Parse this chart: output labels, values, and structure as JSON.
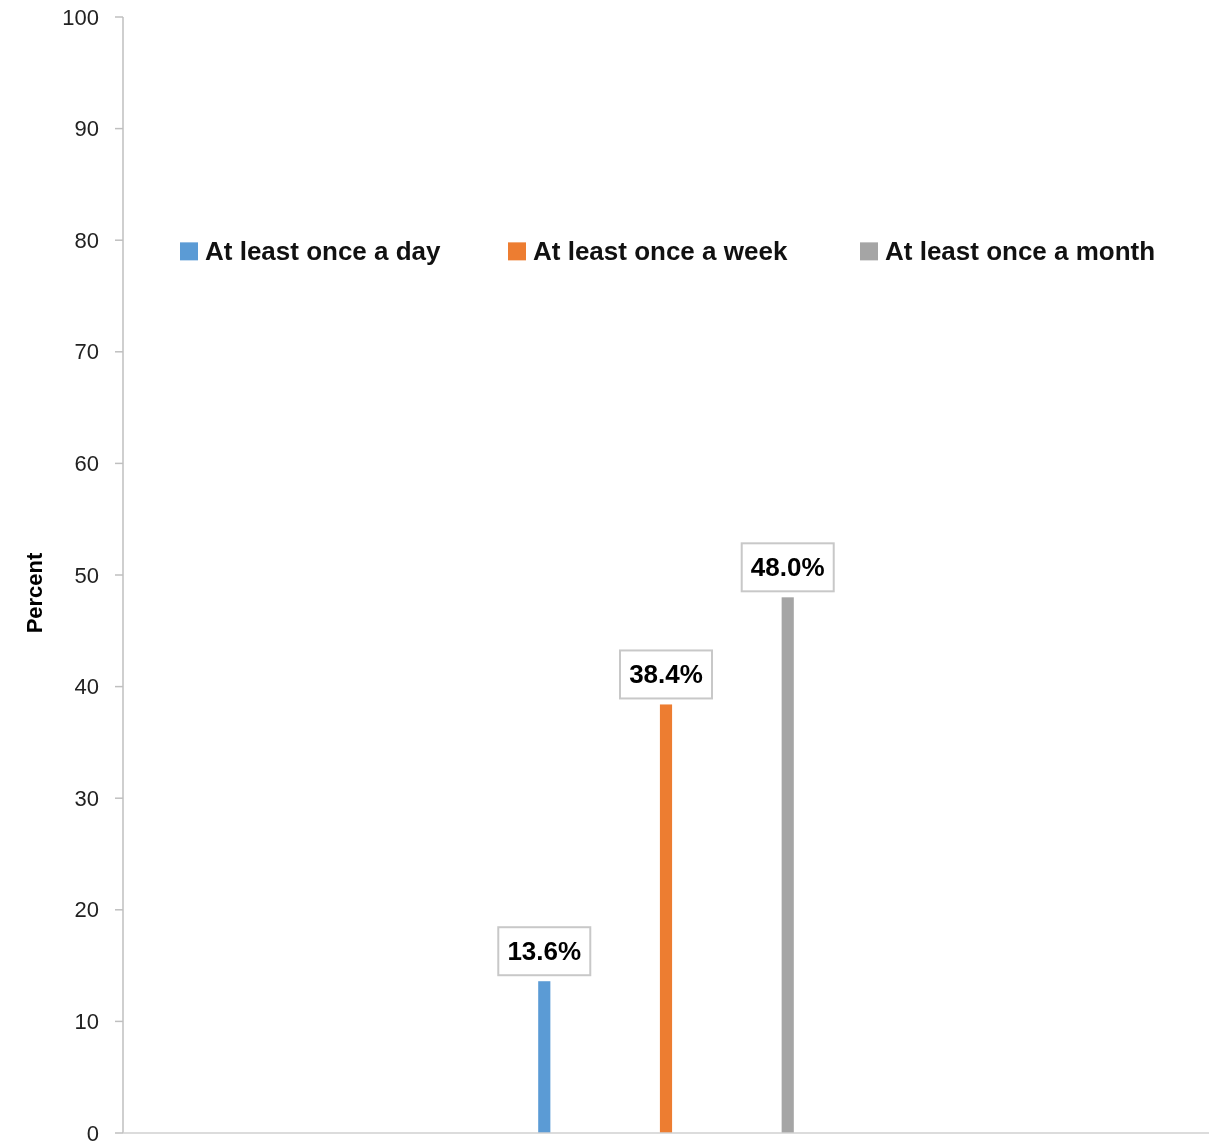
{
  "chart_data": {
    "type": "bar",
    "ylabel": "Percent",
    "categories": [
      null
    ],
    "series": [
      {
        "name": "At least once a day",
        "color": "#5b9bd5",
        "values": [
          13.6
        ],
        "value_labels": [
          "13.6%"
        ]
      },
      {
        "name": "At least once a week",
        "color": "#ed7d31",
        "values": [
          38.4
        ],
        "value_labels": [
          "38.4%"
        ]
      },
      {
        "name": "At least once a month",
        "color": "#a5a5a5",
        "values": [
          48.0
        ],
        "value_labels": [
          "48.0%"
        ]
      }
    ],
    "ylim": [
      0,
      100
    ],
    "yticks": [
      0,
      10,
      20,
      30,
      40,
      50,
      60,
      70,
      80,
      90,
      100
    ],
    "legend": "top"
  }
}
